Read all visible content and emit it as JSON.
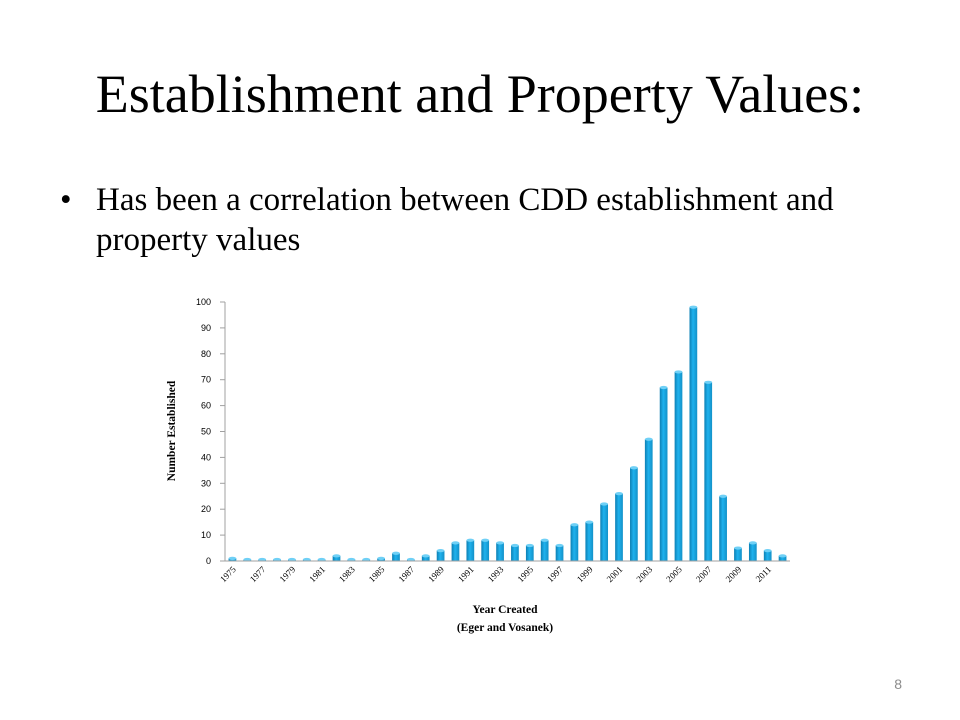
{
  "slide": {
    "title": "Establishment and Property Values:",
    "bullet": "Has been a correlation between CDD establishment and property values",
    "page_number": "8"
  },
  "chart_data": {
    "type": "bar",
    "color": "#1aa3dd",
    "ylabel": "Number Established",
    "xlabel": "Year Created",
    "xlabel_sub": "(Eger and Vosanek)",
    "ylim": [
      0,
      100
    ],
    "yticks": [
      0,
      10,
      20,
      30,
      40,
      50,
      60,
      70,
      80,
      90,
      100
    ],
    "grid": false,
    "categories": [
      "1975",
      "1976",
      "1977",
      "1978",
      "1979",
      "1980",
      "1981",
      "1982",
      "1983",
      "1984",
      "1985",
      "1986",
      "1987",
      "1988",
      "1989",
      "1990",
      "1991",
      "1992",
      "1993",
      "1994",
      "1995",
      "1996",
      "1997",
      "1998",
      "1999",
      "2000",
      "2001",
      "2002",
      "2003",
      "2004",
      "2005",
      "2006",
      "2007",
      "2008",
      "2009",
      "2010",
      "2011",
      "2012"
    ],
    "tick_labels": [
      "1975",
      "1977",
      "1979",
      "1981",
      "1983",
      "1985",
      "1987",
      "1989",
      "1991",
      "1993",
      "1995",
      "1997",
      "1999",
      "2001",
      "2003",
      "2005",
      "2007",
      "2009",
      "2011"
    ],
    "values": [
      1,
      0,
      0,
      0,
      0,
      0,
      0,
      2,
      0,
      0,
      1,
      3,
      0,
      2,
      4,
      7,
      8,
      8,
      7,
      6,
      6,
      8,
      6,
      14,
      15,
      22,
      26,
      36,
      47,
      67,
      73,
      98,
      69,
      25,
      5,
      7,
      4,
      2
    ]
  }
}
